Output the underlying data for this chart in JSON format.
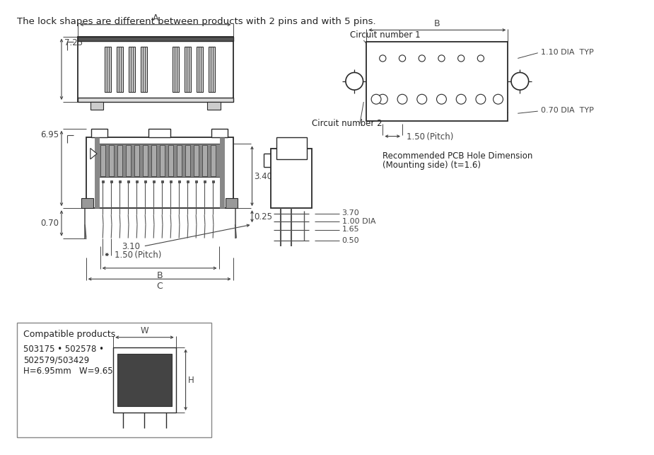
{
  "title_text": "The lock shapes are different between products with 2 pins and with 5 pins.",
  "bg_color": "#ffffff",
  "line_color": "#2a2a2a",
  "dim_color": "#444444",
  "text_color": "#222222",
  "annotations": {
    "A": "A",
    "B": "B",
    "C": "C",
    "label_725": "7.25",
    "label_695": "6.95",
    "label_070": "0.70",
    "label_150pitch": "1.50 (Pitch)",
    "label_340": "3.40",
    "label_025": "0.25",
    "label_310": "3.10",
    "label_370": "3.70",
    "label_100dia": "1.00 DIA",
    "label_165": "1.65",
    "label_050": "0.50",
    "pcb_B": "B",
    "pcb_cn1": "Circuit number 1",
    "pcb_cn2": "Circuit number 2",
    "pcb_150pitch": "1.50 (Pitch)",
    "pcb_110dia": "1.10 DIA  TYP",
    "pcb_070dia": "0.70 DIA  TYP",
    "pcb_label1": "Recommended PCB Hole Dimension",
    "pcb_label2": "(Mounting side) (t=1.6)",
    "compat_title": "Compatible products",
    "compat_line1": "503175 • 502578 •",
    "compat_line2": "502579/503429",
    "compat_line3": "H=6.95mm   W=9.65mm",
    "compat_W": "W",
    "compat_H": "H"
  }
}
